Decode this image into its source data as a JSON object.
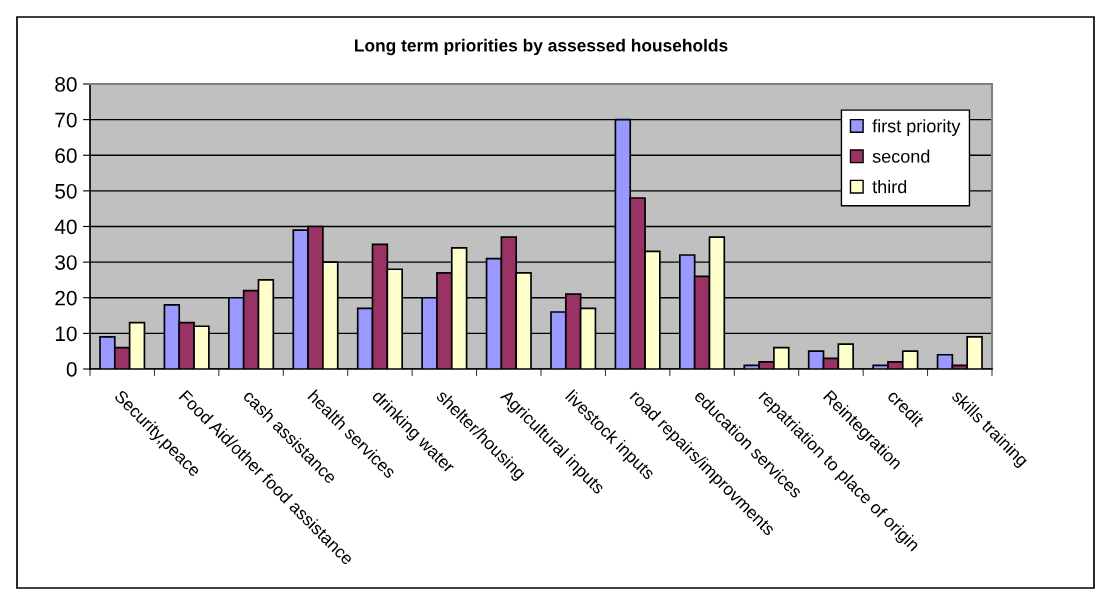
{
  "chart_data": {
    "type": "bar",
    "title": "Long term priorities by assessed households",
    "categories": [
      "Security,peace",
      "Food Aid/other food assistance",
      "cash assistance",
      "health services",
      "drinking water",
      "shelter/housing",
      "Agricultural inputs",
      "livestock inputs",
      "road repairs/improvments",
      "education services",
      "repatriation to place of origin",
      "Reintegration",
      "credit",
      "skills training"
    ],
    "series": [
      {
        "name": "first priority",
        "color": "#9999ff",
        "values": [
          9,
          18,
          20,
          39,
          17,
          20,
          31,
          16,
          70,
          32,
          1,
          5,
          1,
          4
        ]
      },
      {
        "name": "second",
        "color": "#993366",
        "values": [
          6,
          13,
          22,
          40,
          35,
          27,
          37,
          21,
          48,
          26,
          2,
          3,
          2,
          1
        ]
      },
      {
        "name": "third",
        "color": "#ffffcc",
        "values": [
          13,
          12,
          25,
          30,
          28,
          34,
          27,
          17,
          33,
          37,
          6,
          7,
          5,
          9
        ]
      }
    ],
    "ylim": [
      0,
      80
    ],
    "yticks": [
      0,
      10,
      20,
      30,
      40,
      50,
      60,
      70,
      80
    ],
    "grid": "y",
    "legend": "top right"
  }
}
